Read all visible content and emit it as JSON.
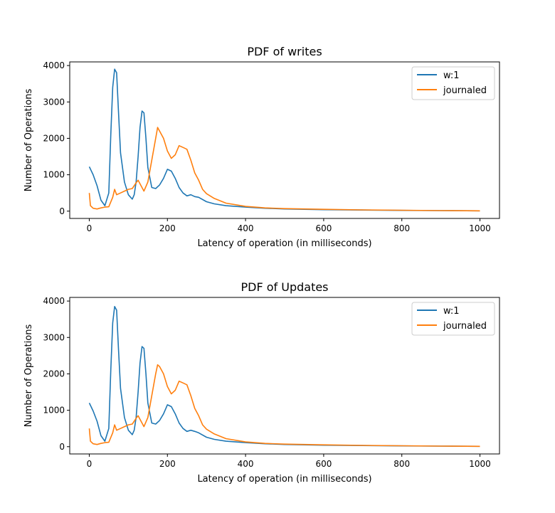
{
  "chart_data": [
    {
      "type": "line",
      "title": "PDF of writes",
      "xlabel": "Latency of operation (in milliseconds)",
      "ylabel": "Number of Operations",
      "xlim": [
        -50,
        1050
      ],
      "ylim": [
        -200,
        4100
      ],
      "xticks": [
        0,
        200,
        400,
        600,
        800,
        1000
      ],
      "yticks": [
        0,
        1000,
        2000,
        3000,
        4000
      ],
      "legend_position": "top-right",
      "series": [
        {
          "name": "w:1",
          "color": "#1f77b4",
          "x": [
            0,
            10,
            20,
            30,
            40,
            50,
            55,
            60,
            65,
            70,
            75,
            80,
            90,
            100,
            110,
            115,
            120,
            125,
            130,
            135,
            140,
            145,
            150,
            160,
            170,
            180,
            190,
            200,
            210,
            220,
            230,
            240,
            250,
            260,
            270,
            280,
            300,
            320,
            350,
            400,
            450,
            500,
            600,
            700,
            800,
            900,
            1000
          ],
          "values": [
            1220,
            1000,
            700,
            300,
            150,
            500,
            2100,
            3400,
            3900,
            3800,
            2700,
            1600,
            800,
            450,
            330,
            450,
            800,
            1500,
            2300,
            2750,
            2700,
            2000,
            1200,
            650,
            620,
            720,
            900,
            1150,
            1100,
            900,
            650,
            500,
            420,
            450,
            400,
            380,
            260,
            200,
            150,
            110,
            80,
            60,
            40,
            30,
            20,
            15,
            10
          ]
        },
        {
          "name": "journaled",
          "color": "#ff7f0e",
          "x": [
            0,
            3,
            10,
            20,
            30,
            40,
            50,
            60,
            65,
            70,
            80,
            90,
            100,
            110,
            120,
            125,
            130,
            140,
            150,
            160,
            170,
            175,
            180,
            190,
            200,
            210,
            220,
            230,
            240,
            250,
            260,
            270,
            280,
            290,
            300,
            320,
            350,
            400,
            450,
            500,
            600,
            700,
            800,
            900,
            1000
          ],
          "values": [
            500,
            150,
            80,
            60,
            90,
            110,
            120,
            380,
            600,
            450,
            500,
            550,
            600,
            620,
            780,
            850,
            750,
            550,
            800,
            1400,
            2000,
            2300,
            2200,
            2000,
            1650,
            1450,
            1550,
            1800,
            1750,
            1700,
            1400,
            1050,
            850,
            600,
            480,
            350,
            220,
            130,
            90,
            70,
            50,
            35,
            25,
            15,
            10
          ]
        }
      ]
    },
    {
      "type": "line",
      "title": "PDF of Updates",
      "xlabel": "Latency of operation (in milliseconds)",
      "ylabel": "Number of Operations",
      "xlim": [
        -50,
        1050
      ],
      "ylim": [
        -200,
        4100
      ],
      "xticks": [
        0,
        200,
        400,
        600,
        800,
        1000
      ],
      "yticks": [
        0,
        1000,
        2000,
        3000,
        4000
      ],
      "legend_position": "top-right",
      "series": [
        {
          "name": "w:1",
          "color": "#1f77b4",
          "x": [
            0,
            10,
            20,
            30,
            40,
            50,
            55,
            60,
            65,
            70,
            75,
            80,
            90,
            100,
            110,
            115,
            120,
            125,
            130,
            135,
            140,
            145,
            150,
            160,
            170,
            180,
            190,
            200,
            210,
            220,
            230,
            240,
            250,
            260,
            270,
            280,
            300,
            320,
            350,
            400,
            450,
            500,
            600,
            700,
            800,
            900,
            1000
          ],
          "values": [
            1200,
            980,
            700,
            300,
            150,
            500,
            2100,
            3400,
            3850,
            3750,
            2650,
            1600,
            800,
            450,
            330,
            450,
            800,
            1500,
            2300,
            2750,
            2700,
            2000,
            1200,
            650,
            620,
            720,
            900,
            1150,
            1100,
            900,
            650,
            500,
            420,
            450,
            420,
            380,
            260,
            200,
            150,
            110,
            80,
            60,
            40,
            30,
            20,
            15,
            10
          ]
        },
        {
          "name": "journaled",
          "color": "#ff7f0e",
          "x": [
            0,
            3,
            10,
            20,
            30,
            40,
            50,
            60,
            65,
            70,
            80,
            90,
            100,
            110,
            120,
            125,
            130,
            140,
            150,
            160,
            170,
            175,
            180,
            190,
            200,
            210,
            220,
            230,
            240,
            250,
            260,
            270,
            280,
            290,
            300,
            320,
            350,
            400,
            450,
            500,
            600,
            700,
            800,
            900,
            1000
          ],
          "values": [
            500,
            150,
            80,
            60,
            90,
            110,
            120,
            380,
            600,
            450,
            500,
            550,
            600,
            620,
            780,
            850,
            750,
            550,
            800,
            1400,
            2000,
            2250,
            2200,
            2000,
            1650,
            1450,
            1550,
            1800,
            1750,
            1700,
            1400,
            1050,
            850,
            600,
            480,
            350,
            220,
            130,
            90,
            70,
            50,
            35,
            25,
            15,
            10
          ]
        }
      ]
    }
  ]
}
